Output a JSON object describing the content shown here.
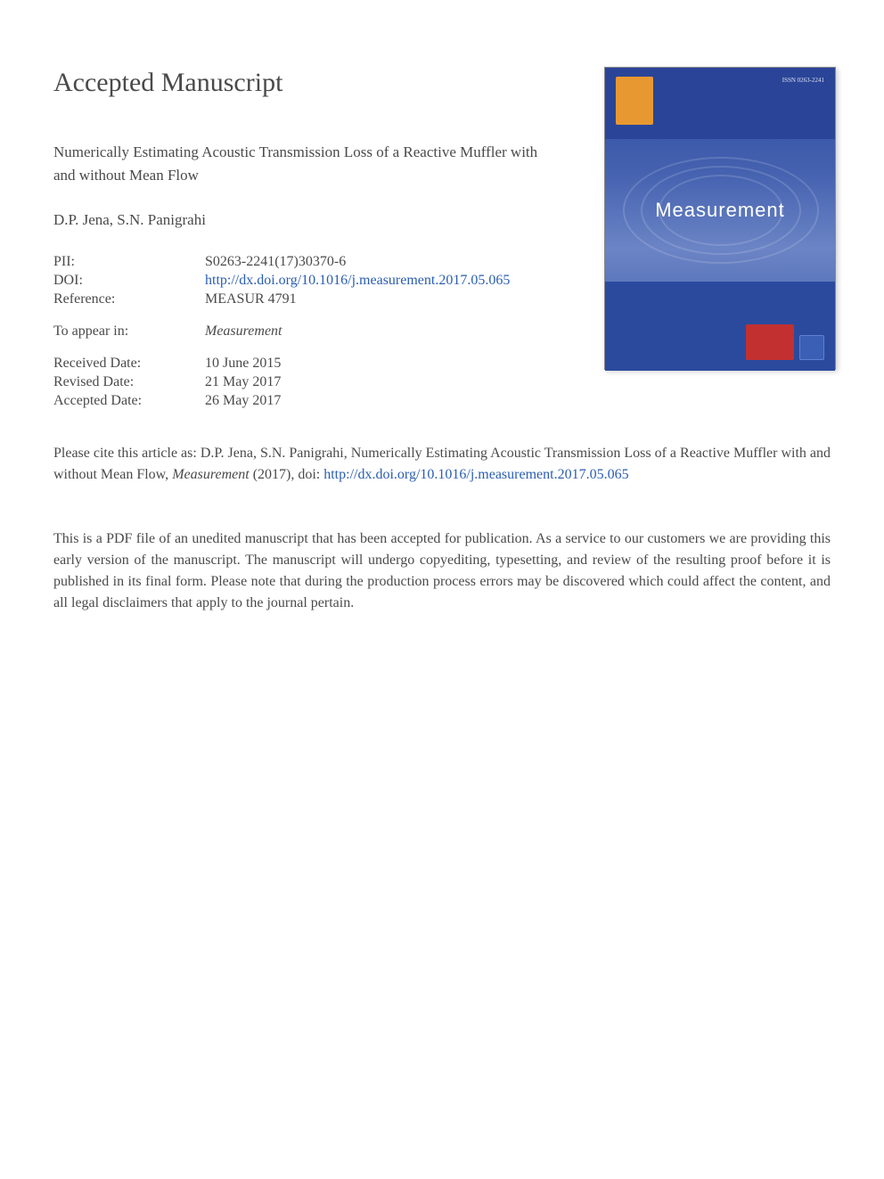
{
  "page_title": "Accepted Manuscript",
  "article_title": "Numerically Estimating Acoustic Transmission Loss of a Reactive Muffler with and without Mean Flow",
  "authors": "D.P. Jena, S.N. Panigrahi",
  "meta": {
    "pii_label": "PII:",
    "pii_value": "S0263-2241(17)30370-6",
    "doi_label": "DOI:",
    "doi_value": "http://dx.doi.org/10.1016/j.measurement.2017.05.065",
    "reference_label": "Reference:",
    "reference_value": "MEASUR 4791",
    "appear_label": "To appear in:",
    "appear_value": "Measurement",
    "received_label": "Received Date:",
    "received_value": "10 June 2015",
    "revised_label": "Revised Date:",
    "revised_value": "21 May 2017",
    "accepted_label": "Accepted Date:",
    "accepted_value": "26 May 2017"
  },
  "citation": {
    "prefix": "Please cite this article as: D.P. Jena, S.N. Panigrahi, Numerically Estimating Acoustic Transmission Loss of a Reactive Muffler with and without Mean Flow, ",
    "journal": "Measurement",
    "middle": " (2017), doi: ",
    "link": "http://dx.doi.org/10.1016/j.measurement.2017.05.065"
  },
  "disclaimer": "This is a PDF file of an unedited manuscript that has been accepted for publication. As a service to our customers we are providing this early version of the manuscript. The manuscript will undergo copyediting, typesetting, and review of the resulting proof before it is published in its final form. Please note that during the production process errors may be discovered which could affect the content, and all legal disclaimers that apply to the journal pertain.",
  "cover": {
    "journal_name": "Measurement",
    "issn": "ISSN 0263-2241",
    "colors": {
      "gradient_top": "#2b4a9e",
      "gradient_mid": "#6b84c5",
      "text": "#ffffff",
      "logo": "#e89830",
      "badge": "#c23030"
    }
  }
}
